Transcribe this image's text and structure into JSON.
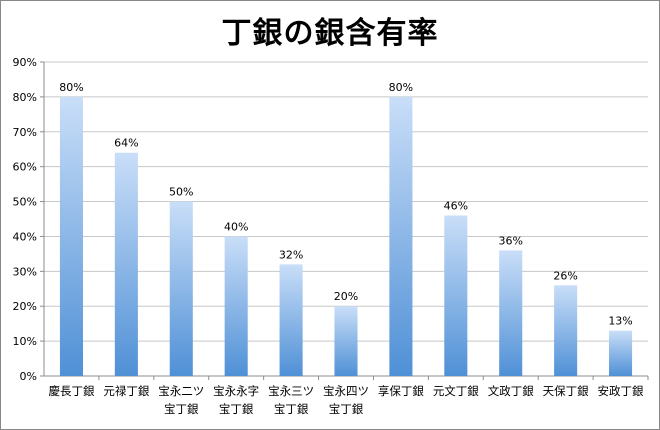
{
  "chart_data": {
    "type": "bar",
    "title": "丁銀の銀含有率",
    "categories": [
      [
        "慶長丁銀"
      ],
      [
        "元禄丁銀"
      ],
      [
        "宝永二ツ",
        "宝丁銀"
      ],
      [
        "宝永永字",
        "宝丁銀"
      ],
      [
        "宝永三ツ",
        "宝丁銀"
      ],
      [
        "宝永四ツ",
        "宝丁銀"
      ],
      [
        "享保丁銀"
      ],
      [
        "元文丁銀"
      ],
      [
        "文政丁銀"
      ],
      [
        "天保丁銀"
      ],
      [
        "安政丁銀"
      ]
    ],
    "values": [
      80,
      64,
      50,
      40,
      32,
      20,
      80,
      46,
      36,
      26,
      13
    ],
    "data_labels": [
      "80%",
      "64%",
      "50%",
      "40%",
      "32%",
      "20%",
      "80%",
      "46%",
      "36%",
      "26%",
      "13%"
    ],
    "ylim": [
      0,
      90
    ],
    "yticks": [
      "0%",
      "10%",
      "20%",
      "30%",
      "40%",
      "50%",
      "60%",
      "70%",
      "80%",
      "90%"
    ],
    "grid": true,
    "colors": {
      "bar_top": "#c9def8",
      "bar_bottom": "#4f90d6",
      "grid": "#c8c8c8",
      "axis": "#8c8c8c"
    }
  }
}
